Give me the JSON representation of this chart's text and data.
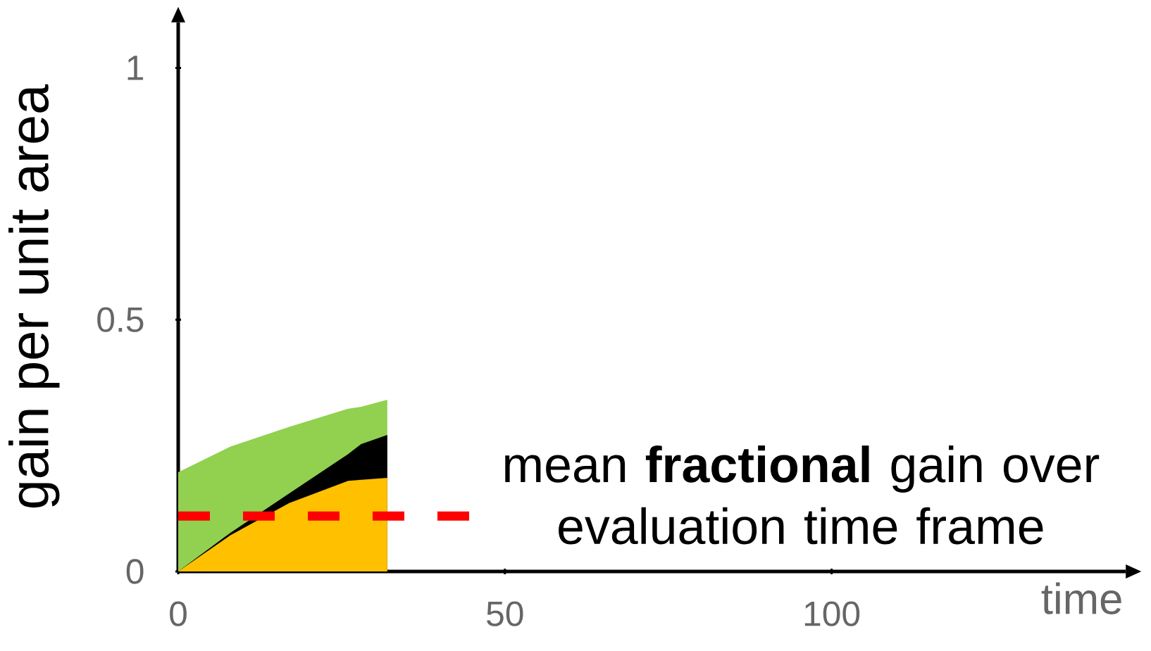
{
  "chart_data": {
    "type": "area",
    "stacked": true,
    "xlabel": "time",
    "ylabel": "gain per unit area",
    "x": [
      0,
      8,
      17,
      26,
      28,
      32
    ],
    "series": [
      {
        "color": "#ffc000",
        "values": [
          0,
          0.072,
          0.136,
          0.18,
          0.182,
          0.186
        ]
      },
      {
        "color": "#000000",
        "values": [
          0,
          0.005,
          0.019,
          0.053,
          0.071,
          0.085
        ]
      },
      {
        "color": "#92d050",
        "values": [
          0.197,
          0.171,
          0.132,
          0.09,
          0.074,
          0.07
        ]
      }
    ],
    "xlim": [
      0,
      145
    ],
    "ylim": [
      0,
      1.09
    ],
    "xticks": [
      0,
      50,
      100
    ],
    "yticks": [
      0,
      0.5,
      1
    ],
    "ref_lines": [
      {
        "axis": "y",
        "value": 0.11,
        "label": "mean **fractional** gain over evaluation time frame",
        "color": "#ff0000",
        "line_style": "dashed"
      }
    ]
  }
}
